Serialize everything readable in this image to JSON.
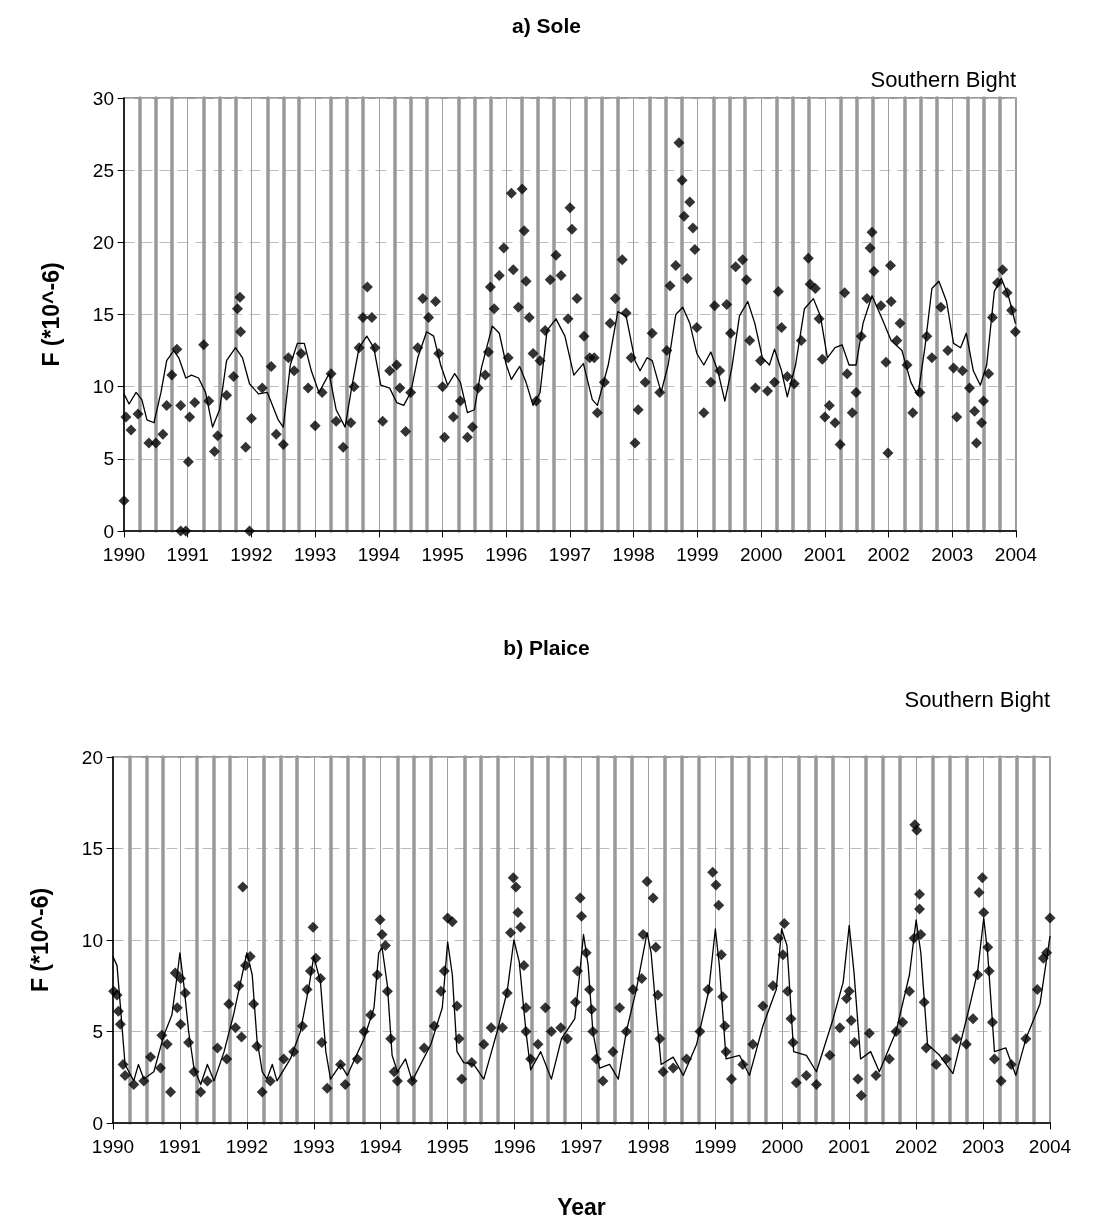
{
  "chart_data": [
    {
      "type": "scatter",
      "title": "a) Sole",
      "ylabel": "F (*10^-6)",
      "annotations": [
        "Southern Bight"
      ],
      "xlim": [
        1990,
        2004
      ],
      "ylim": [
        0,
        30
      ],
      "yticks": [
        0,
        5,
        10,
        15,
        20,
        25,
        30
      ],
      "xticks": [
        1990,
        {
          "value": 1990.25,
          "label": null
        },
        {
          "value": 1990.5,
          "label": null
        },
        {
          "value": 1990.75,
          "label": null
        },
        1991,
        {
          "value": 1991.25,
          "label": null
        },
        {
          "value": 1991.5,
          "label": null
        },
        {
          "value": 1991.75,
          "label": null
        },
        1992,
        {
          "value": 1992.25,
          "label": null
        },
        {
          "value": 1992.5,
          "label": null
        },
        {
          "value": 1992.75,
          "label": null
        },
        1993,
        {
          "value": 1993.25,
          "label": null
        },
        {
          "value": 1993.5,
          "label": null
        },
        {
          "value": 1993.75,
          "label": null
        },
        1994,
        {
          "value": 1994.25,
          "label": null
        },
        {
          "value": 1994.5,
          "label": null
        },
        {
          "value": 1994.75,
          "label": null
        },
        1995,
        {
          "value": 1995.25,
          "label": null
        },
        {
          "value": 1995.5,
          "label": null
        },
        {
          "value": 1995.75,
          "label": null
        },
        1996,
        {
          "value": 1996.25,
          "label": null
        },
        {
          "value": 1996.5,
          "label": null
        },
        {
          "value": 1996.75,
          "label": null
        },
        1997,
        {
          "value": 1997.25,
          "label": null
        },
        {
          "value": 1997.5,
          "label": null
        },
        {
          "value": 1997.75,
          "label": null
        },
        1998,
        {
          "value": 1998.25,
          "label": null
        },
        {
          "value": 1998.5,
          "label": null
        },
        {
          "value": 1998.75,
          "label": null
        },
        1999,
        {
          "value": 1999.25,
          "label": null
        },
        {
          "value": 1999.5,
          "label": null
        },
        {
          "value": 1999.75,
          "label": null
        },
        2000,
        {
          "value": 2000.25,
          "label": null
        },
        {
          "value": 2000.5,
          "label": null
        },
        {
          "value": 2000.75,
          "label": null
        },
        2001,
        {
          "value": 2001.25,
          "label": null
        },
        {
          "value": 2001.5,
          "label": null
        },
        {
          "value": 2001.75,
          "label": null
        },
        2002,
        {
          "value": 2002.25,
          "label": null
        },
        {
          "value": 2002.5,
          "label": null
        },
        {
          "value": 2002.75,
          "label": null
        },
        2003,
        {
          "value": 2003.25,
          "label": null
        },
        {
          "value": 2003.5,
          "label": null
        },
        {
          "value": 2003.75,
          "label": null
        },
        2004
      ],
      "grid": true,
      "series": [
        {
          "marker": "diamond",
          "color": "#000000",
          "x": [
            1990.0,
            1990.03,
            1990.11,
            1990.22,
            1990.39,
            1990.5,
            1990.61,
            1990.67,
            1990.75,
            1990.83,
            1990.89,
            1990.89,
            1990.97,
            1991.01,
            1991.03,
            1991.11,
            1991.25,
            1991.33,
            1991.42,
            1991.47,
            1991.61,
            1991.72,
            1991.78,
            1991.82,
            1991.83,
            1991.91,
            1991.97,
            1992.0,
            1992.17,
            1992.31,
            1992.39,
            1992.5,
            1992.58,
            1992.67,
            1992.78,
            1992.89,
            1993.0,
            1993.11,
            1993.25,
            1993.33,
            1993.44,
            1993.56,
            1993.61,
            1993.69,
            1993.75,
            1993.82,
            1993.89,
            1993.94,
            1994.06,
            1994.17,
            1994.28,
            1994.33,
            1994.42,
            1994.5,
            1994.61,
            1994.69,
            1994.78,
            1994.89,
            1994.94,
            1995.0,
            1995.03,
            1995.17,
            1995.28,
            1995.39,
            1995.47,
            1995.56,
            1995.67,
            1995.72,
            1995.75,
            1995.81,
            1995.89,
            1995.96,
            1996.03,
            1996.08,
            1996.11,
            1996.19,
            1996.25,
            1996.28,
            1996.31,
            1996.36,
            1996.42,
            1996.47,
            1996.53,
            1996.61,
            1996.69,
            1996.78,
            1996.86,
            1996.97,
            1997.0,
            1997.03,
            1997.11,
            1997.22,
            1997.31,
            1997.38,
            1997.43,
            1997.54,
            1997.63,
            1997.71,
            1997.82,
            1997.88,
            1997.96,
            1998.02,
            1998.07,
            1998.18,
            1998.29,
            1998.41,
            1998.52,
            1998.57,
            1998.66,
            1998.71,
            1998.76,
            1998.79,
            1998.84,
            1998.88,
            1998.93,
            1998.96,
            1998.99,
            1999.1,
            1999.21,
            1999.27,
            1999.35,
            1999.46,
            1999.52,
            1999.6,
            1999.71,
            1999.77,
            1999.82,
            1999.91,
            1999.99,
            2000.1,
            2000.21,
            2000.27,
            2000.32,
            2000.41,
            2000.52,
            2000.63,
            2000.74,
            2000.77,
            2000.85,
            2000.91,
            2000.96,
            2001.0,
            2001.07,
            2001.16,
            2001.24,
            2001.31,
            2001.35,
            2001.43,
            2001.49,
            2001.57,
            2001.66,
            2001.71,
            2001.74,
            2001.77,
            2001.88,
            2001.96,
            2001.99,
            2002.03,
            2002.04,
            2002.13,
            2002.18,
            2002.29,
            2002.38,
            2002.49,
            2002.6,
            2002.68,
            2002.82,
            2002.93,
            2003.02,
            2003.07,
            2003.16,
            2003.27,
            2003.35,
            2003.38,
            2003.46,
            2003.49,
            2003.57,
            2003.63,
            2003.71,
            2003.79,
            2003.86,
            2003.93,
            2003.99
          ],
          "values": [
            2.1,
            7.9,
            7.0,
            8.1,
            6.1,
            6.1,
            6.7,
            8.7,
            10.8,
            12.6,
            8.7,
            0,
            0,
            4.8,
            7.9,
            8.9,
            12.9,
            9.0,
            5.5,
            6.6,
            9.4,
            10.7,
            15.4,
            16.2,
            13.8,
            5.8,
            0,
            7.8,
            9.9,
            11.4,
            6.7,
            6.0,
            12.0,
            11.1,
            12.3,
            9.9,
            7.3,
            9.6,
            10.9,
            7.6,
            5.8,
            7.5,
            10.0,
            12.7,
            14.8,
            16.9,
            14.8,
            12.7,
            7.6,
            11.1,
            11.5,
            9.9,
            6.9,
            9.6,
            12.7,
            16.1,
            14.8,
            15.9,
            12.3,
            10.0,
            6.5,
            7.9,
            9.0,
            6.5,
            7.2,
            9.9,
            10.8,
            12.4,
            16.9,
            15.4,
            17.7,
            19.6,
            12.0,
            23.4,
            18.1,
            15.5,
            23.7,
            20.8,
            17.3,
            14.8,
            12.3,
            9.0,
            11.8,
            13.9,
            17.4,
            19.1,
            17.7,
            14.7,
            22.4,
            20.9,
            16.1,
            13.5,
            12.0,
            12.0,
            8.2,
            10.3,
            14.4,
            16.1,
            18.8,
            15.1,
            12.0,
            6.1,
            8.4,
            10.3,
            13.7,
            9.6,
            12.5,
            17.0,
            18.4,
            26.9,
            24.3,
            21.8,
            17.5,
            22.8,
            21.0,
            19.5,
            14.1,
            8.2,
            10.3,
            15.6,
            11.1,
            15.7,
            13.7,
            18.3,
            18.8,
            17.4,
            13.2,
            9.9,
            11.8,
            9.7,
            10.3,
            16.6,
            14.1,
            10.7,
            10.2,
            13.2,
            18.9,
            17.1,
            16.8,
            14.7,
            11.9,
            7.9,
            8.7,
            7.5,
            6.0,
            16.5,
            10.9,
            8.2,
            9.6,
            13.5,
            16.1,
            19.6,
            20.7,
            18.0,
            15.6,
            11.7,
            5.4,
            18.4,
            15.9,
            13.2,
            14.4,
            11.5,
            8.2,
            9.6,
            13.5,
            12.0,
            15.5,
            12.5,
            11.3,
            7.9,
            11.1,
            9.9,
            8.3,
            6.1,
            7.5,
            9.0,
            10.9,
            14.8,
            17.2,
            18.1,
            16.5,
            15.3,
            13.8
          ]
        },
        {
          "type": "line",
          "color": "#000000",
          "x": [
            1990.0,
            1990.08,
            1990.19,
            1990.28,
            1990.36,
            1990.47,
            1990.58,
            1990.67,
            1990.78,
            1990.86,
            1990.97,
            1991.06,
            1991.17,
            1991.28,
            1991.39,
            1991.5,
            1991.61,
            1991.75,
            1991.86,
            1991.97,
            1992.11,
            1992.25,
            1992.42,
            1992.5,
            1992.61,
            1992.72,
            1992.83,
            1992.94,
            1993.06,
            1993.22,
            1993.33,
            1993.47,
            1993.58,
            1993.69,
            1993.81,
            1993.92,
            1994.03,
            1994.17,
            1994.28,
            1994.39,
            1994.5,
            1994.61,
            1994.75,
            1994.86,
            1994.97,
            1995.08,
            1995.19,
            1995.28,
            1995.39,
            1995.5,
            1995.61,
            1995.78,
            1995.89,
            1996.0,
            1996.08,
            1996.21,
            1996.31,
            1996.42,
            1996.53,
            1996.64,
            1996.78,
            1996.92,
            1997.06,
            1997.21,
            1997.35,
            1997.43,
            1997.6,
            1997.75,
            1997.88,
            1998.02,
            1998.1,
            1998.21,
            1998.29,
            1998.43,
            1998.54,
            1998.66,
            1998.77,
            1998.88,
            1998.99,
            1999.1,
            1999.21,
            1999.32,
            1999.43,
            1999.54,
            1999.66,
            1999.79,
            1999.9,
            2000.02,
            2000.13,
            2000.21,
            2000.32,
            2000.41,
            2000.54,
            2000.68,
            2000.82,
            2000.93,
            2001.04,
            2001.16,
            2001.27,
            2001.38,
            2001.49,
            2001.6,
            2001.74,
            2001.88,
            2002.04,
            2002.21,
            2002.35,
            2002.46,
            2002.57,
            2002.68,
            2002.79,
            2002.91,
            2003.02,
            2003.13,
            2003.22,
            2003.33,
            2003.44,
            2003.54,
            2003.66,
            2003.77,
            2003.88,
            2003.99
          ],
          "values": [
            9.5,
            8.8,
            9.6,
            9.1,
            7.7,
            7.5,
            9.6,
            11.8,
            12.5,
            12.0,
            10.6,
            10.8,
            10.6,
            9.6,
            7.2,
            8.4,
            11.8,
            12.7,
            12.0,
            10.2,
            9.5,
            9.6,
            7.7,
            7.2,
            11.5,
            13.0,
            13.0,
            11.1,
            9.6,
            10.9,
            8.4,
            7.2,
            10.1,
            12.7,
            13.5,
            12.7,
            10.1,
            9.9,
            8.9,
            8.7,
            9.6,
            12.0,
            13.8,
            13.5,
            11.5,
            10.1,
            10.9,
            10.3,
            8.2,
            8.4,
            11.3,
            14.2,
            13.7,
            11.5,
            10.5,
            11.4,
            10.3,
            8.7,
            9.6,
            13.9,
            14.7,
            13.5,
            10.8,
            11.6,
            9.1,
            8.7,
            11.5,
            15.2,
            14.9,
            11.8,
            11.1,
            12.0,
            11.8,
            9.6,
            11.5,
            15.0,
            15.5,
            14.4,
            12.3,
            11.5,
            12.4,
            11.1,
            9.0,
            11.3,
            14.9,
            15.9,
            14.4,
            12.0,
            11.5,
            12.6,
            11.1,
            9.3,
            11.5,
            15.4,
            16.1,
            14.9,
            12.0,
            12.7,
            12.9,
            11.5,
            11.5,
            14.4,
            16.3,
            14.9,
            13.2,
            12.5,
            10.3,
            9.4,
            12.7,
            16.8,
            17.3,
            15.9,
            13.0,
            12.7,
            13.7,
            11.1,
            10.1,
            11.5,
            16.6,
            17.5,
            16.3,
            14.4
          ]
        }
      ]
    },
    {
      "type": "scatter",
      "title": "b) Plaice",
      "xlabel": "Year",
      "ylabel": "F (*10^-6)",
      "annotations": [
        "Southern Bight"
      ],
      "xlim": [
        1990,
        2004
      ],
      "ylim": [
        0,
        20
      ],
      "yticks": [
        0,
        5,
        10,
        15,
        20
      ],
      "xticks": [
        1990,
        {
          "value": 1990.25,
          "label": null
        },
        {
          "value": 1990.5,
          "label": null
        },
        {
          "value": 1990.75,
          "label": null
        },
        1991,
        {
          "value": 1991.25,
          "label": null
        },
        {
          "value": 1991.5,
          "label": null
        },
        {
          "value": 1991.75,
          "label": null
        },
        1992,
        {
          "value": 1992.25,
          "label": null
        },
        {
          "value": 1992.5,
          "label": null
        },
        {
          "value": 1992.75,
          "label": null
        },
        1993,
        {
          "value": 1993.25,
          "label": null
        },
        {
          "value": 1993.5,
          "label": null
        },
        {
          "value": 1993.75,
          "label": null
        },
        1994,
        {
          "value": 1994.25,
          "label": null
        },
        {
          "value": 1994.5,
          "label": null
        },
        {
          "value": 1994.75,
          "label": null
        },
        1995,
        {
          "value": 1995.25,
          "label": null
        },
        {
          "value": 1995.5,
          "label": null
        },
        {
          "value": 1995.75,
          "label": null
        },
        1996,
        {
          "value": 1996.25,
          "label": null
        },
        {
          "value": 1996.5,
          "label": null
        },
        {
          "value": 1996.75,
          "label": null
        },
        1997,
        {
          "value": 1997.25,
          "label": null
        },
        {
          "value": 1997.5,
          "label": null
        },
        {
          "value": 1997.75,
          "label": null
        },
        1998,
        {
          "value": 1998.25,
          "label": null
        },
        {
          "value": 1998.5,
          "label": null
        },
        {
          "value": 1998.75,
          "label": null
        },
        1999,
        {
          "value": 1999.25,
          "label": null
        },
        {
          "value": 1999.5,
          "label": null
        },
        {
          "value": 1999.75,
          "label": null
        },
        2000,
        {
          "value": 2000.25,
          "label": null
        },
        {
          "value": 2000.5,
          "label": null
        },
        {
          "value": 2000.75,
          "label": null
        },
        2001,
        {
          "value": 2001.25,
          "label": null
        },
        {
          "value": 2001.5,
          "label": null
        },
        {
          "value": 2001.75,
          "label": null
        },
        2002,
        {
          "value": 2002.25,
          "label": null
        },
        {
          "value": 2002.5,
          "label": null
        },
        {
          "value": 2002.75,
          "label": null
        },
        2003,
        {
          "value": 2003.25,
          "label": null
        },
        {
          "value": 2003.5,
          "label": null
        },
        {
          "value": 2003.75,
          "label": null
        },
        2004
      ],
      "grid": true,
      "series": [
        {
          "marker": "diamond",
          "color": "#000000",
          "x": [
            1990.01,
            1990.06,
            1990.08,
            1990.11,
            1990.15,
            1990.18,
            1990.31,
            1990.46,
            1990.56,
            1990.71,
            1990.73,
            1990.81,
            1990.86,
            1990.93,
            1990.96,
            1991.01,
            1991.01,
            1991.08,
            1991.13,
            1991.21,
            1991.31,
            1991.41,
            1991.56,
            1991.7,
            1991.73,
            1991.83,
            1991.88,
            1991.92,
            1991.94,
            1991.98,
            1992.05,
            1992.1,
            1992.15,
            1992.23,
            1992.35,
            1992.55,
            1992.7,
            1992.83,
            1992.9,
            1992.95,
            1992.99,
            1993.03,
            1993.1,
            1993.12,
            1993.2,
            1993.4,
            1993.47,
            1993.65,
            1993.75,
            1993.85,
            1993.95,
            1993.99,
            1994.02,
            1994.07,
            1994.1,
            1994.15,
            1994.2,
            1994.25,
            1994.47,
            1994.65,
            1994.8,
            1994.9,
            1994.95,
            1995.0,
            1995.07,
            1995.14,
            1995.17,
            1995.21,
            1995.36,
            1995.54,
            1995.65,
            1995.82,
            1995.89,
            1995.94,
            1995.98,
            1996.02,
            1996.05,
            1996.09,
            1996.14,
            1996.17,
            1996.17,
            1996.24,
            1996.35,
            1996.46,
            1996.55,
            1996.69,
            1996.79,
            1996.91,
            1996.94,
            1996.98,
            1997.0,
            1997.07,
            1997.12,
            1997.15,
            1997.17,
            1997.22,
            1997.32,
            1997.47,
            1997.57,
            1997.67,
            1997.77,
            1997.9,
            1997.92,
            1997.98,
            1998.07,
            1998.11,
            1998.14,
            1998.17,
            1998.22,
            1998.37,
            1998.57,
            1998.77,
            1998.89,
            1998.96,
            1999.01,
            1999.05,
            1999.09,
            1999.11,
            1999.14,
            1999.16,
            1999.24,
            1999.41,
            1999.56,
            1999.71,
            1999.86,
            1999.94,
            2000.01,
            2000.03,
            2000.08,
            2000.13,
            2000.16,
            2000.21,
            2000.36,
            2000.51,
            2000.71,
            2000.86,
            2000.96,
            2001.0,
            2001.03,
            2001.08,
            2001.13,
            2001.18,
            2001.3,
            2001.4,
            2001.6,
            2001.7,
            2001.8,
            2001.9,
            2001.97,
            2001.98,
            2002.01,
            2002.05,
            2002.05,
            2002.07,
            2002.12,
            2002.15,
            2002.3,
            2002.45,
            2002.6,
            2002.75,
            2002.85,
            2002.92,
            2002.94,
            2002.99,
            2003.01,
            2003.07,
            2003.09,
            2003.14,
            2003.17,
            2003.27,
            2003.42,
            2003.64,
            2003.81,
            2003.9,
            2003.95,
            2004.0
          ],
          "values": [
            7.2,
            7.0,
            6.1,
            5.4,
            3.2,
            2.6,
            2.1,
            2.3,
            3.6,
            3.0,
            4.8,
            4.3,
            1.7,
            8.2,
            6.3,
            7.9,
            5.4,
            7.1,
            4.4,
            2.8,
            1.7,
            2.3,
            4.1,
            3.5,
            6.5,
            5.2,
            7.5,
            4.7,
            12.9,
            8.6,
            9.1,
            6.5,
            4.2,
            1.7,
            2.3,
            3.5,
            3.9,
            5.3,
            7.3,
            8.3,
            10.7,
            9.0,
            7.9,
            4.4,
            1.9,
            3.2,
            2.1,
            3.5,
            5.0,
            5.9,
            8.1,
            11.1,
            10.3,
            9.7,
            7.2,
            4.6,
            2.8,
            2.3,
            2.3,
            4.1,
            5.3,
            7.2,
            8.3,
            11.2,
            11.0,
            6.4,
            4.6,
            2.4,
            3.3,
            4.3,
            5.2,
            5.2,
            7.1,
            10.4,
            13.4,
            12.9,
            11.5,
            10.7,
            8.6,
            6.3,
            5.0,
            3.5,
            4.3,
            6.3,
            5.0,
            5.2,
            4.6,
            6.6,
            8.3,
            12.3,
            11.3,
            9.3,
            7.3,
            6.2,
            5.0,
            3.5,
            2.3,
            3.9,
            6.3,
            5.0,
            7.3,
            7.9,
            10.3,
            13.2,
            12.3,
            9.6,
            7.0,
            4.6,
            2.8,
            3.0,
            3.5,
            5.0,
            7.3,
            13.7,
            13.0,
            11.9,
            9.2,
            6.9,
            5.3,
            3.9,
            2.4,
            3.2,
            4.3,
            6.4,
            7.5,
            10.1,
            9.2,
            10.9,
            7.2,
            5.7,
            4.4,
            2.2,
            2.6,
            2.1,
            3.7,
            5.2,
            6.8,
            7.2,
            5.6,
            4.4,
            2.4,
            1.5,
            4.9,
            2.6,
            3.5,
            5.0,
            5.5,
            7.2,
            10.1,
            16.3,
            16.0,
            12.5,
            11.7,
            10.3,
            6.6,
            4.1,
            3.2,
            3.5,
            4.6,
            4.3,
            5.7,
            8.1,
            12.6,
            13.4,
            11.5,
            9.6,
            8.3,
            5.5,
            3.5,
            2.3,
            3.2,
            4.6,
            7.3,
            9.0,
            9.3,
            11.2
          ]
        },
        {
          "type": "line",
          "color": "#000000",
          "x": [
            1990.0,
            1990.06,
            1990.11,
            1990.18,
            1990.31,
            1990.38,
            1990.46,
            1990.61,
            1990.76,
            1990.88,
            1990.96,
            1991.0,
            1991.06,
            1991.13,
            1991.21,
            1991.31,
            1991.41,
            1991.51,
            1991.66,
            1991.8,
            1991.93,
            1992.0,
            1992.08,
            1992.15,
            1992.23,
            1992.3,
            1992.38,
            1992.45,
            1992.65,
            1992.8,
            1992.93,
            1993.0,
            1993.1,
            1993.18,
            1993.25,
            1993.4,
            1993.5,
            1993.75,
            1993.9,
            1993.97,
            1994.02,
            1994.1,
            1994.17,
            1994.25,
            1994.37,
            1994.47,
            1994.75,
            1994.92,
            1995.0,
            1995.07,
            1995.14,
            1995.24,
            1995.39,
            1995.54,
            1995.74,
            1995.89,
            1995.99,
            1996.07,
            1996.17,
            1996.24,
            1996.39,
            1996.55,
            1996.7,
            1996.9,
            1996.98,
            1997.03,
            1997.1,
            1997.17,
            1997.27,
            1997.42,
            1997.55,
            1997.67,
            1997.82,
            1997.98,
            1998.04,
            1998.12,
            1998.19,
            1998.37,
            1998.52,
            1998.72,
            1998.9,
            1999.0,
            1999.06,
            1999.16,
            1999.36,
            1999.51,
            1999.71,
            1999.91,
            1999.99,
            2000.07,
            2000.17,
            2000.36,
            2000.51,
            2000.76,
            2000.91,
            2001.0,
            2001.07,
            2001.17,
            2001.32,
            2001.45,
            2001.7,
            2001.9,
            2002.0,
            2002.07,
            2002.17,
            2002.35,
            2002.55,
            2002.8,
            2002.92,
            2003.01,
            2003.07,
            2003.17,
            2003.34,
            2003.49,
            2003.64,
            2003.85,
            2004.0
          ],
          "values": [
            9.1,
            8.6,
            6.4,
            3.2,
            2.3,
            3.2,
            2.4,
            2.8,
            4.8,
            5.9,
            8.1,
            9.3,
            7.5,
            5.0,
            3.0,
            2.1,
            3.2,
            2.3,
            3.9,
            5.9,
            8.1,
            9.3,
            8.1,
            4.6,
            2.8,
            2.4,
            3.2,
            2.3,
            3.5,
            5.0,
            7.5,
            9.1,
            7.7,
            3.9,
            2.4,
            3.2,
            2.6,
            4.6,
            6.3,
            9.3,
            9.6,
            7.5,
            3.7,
            2.8,
            3.5,
            2.3,
            4.3,
            6.3,
            9.9,
            8.1,
            3.9,
            3.3,
            3.2,
            2.4,
            5.0,
            7.2,
            10.0,
            8.8,
            5.0,
            2.9,
            3.9,
            2.4,
            4.6,
            5.7,
            8.4,
            10.3,
            8.6,
            5.0,
            3.0,
            3.2,
            2.4,
            5.0,
            7.3,
            10.4,
            9.3,
            5.9,
            3.2,
            3.6,
            2.6,
            4.3,
            7.2,
            10.6,
            8.6,
            3.5,
            3.7,
            2.6,
            5.3,
            7.3,
            10.6,
            9.7,
            3.9,
            3.7,
            2.8,
            5.7,
            7.7,
            10.8,
            8.3,
            3.5,
            3.9,
            2.8,
            5.0,
            8.1,
            11.1,
            9.3,
            4.3,
            3.7,
            2.7,
            6.4,
            8.3,
            11.2,
            9.2,
            3.9,
            4.1,
            2.6,
            4.6,
            6.5,
            10.2
          ]
        }
      ]
    }
  ]
}
